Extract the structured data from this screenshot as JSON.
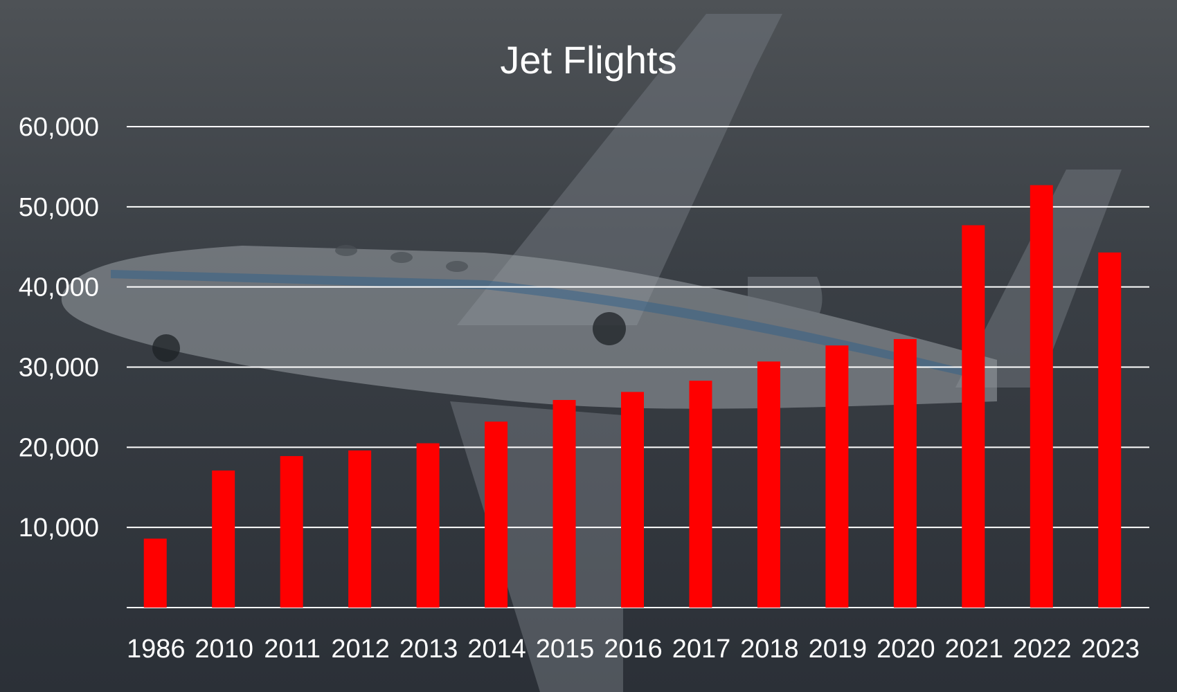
{
  "chart_data": {
    "type": "bar",
    "title": "Jet Flights",
    "xlabel": "",
    "ylabel": "",
    "categories": [
      "1986",
      "2010",
      "2011",
      "2012",
      "2013",
      "2014",
      "2015",
      "2016",
      "2017",
      "2018",
      "2019",
      "2020",
      "2021",
      "2022",
      "2023"
    ],
    "series": [
      {
        "values": [
          8600,
          17100,
          18900,
          19600,
          20500,
          23200,
          25900,
          26900,
          28300,
          30700,
          32700,
          33500,
          47700,
          52700,
          44300
        ]
      }
    ],
    "ylim": [
      0,
      60000
    ],
    "yticks": [
      10000,
      20000,
      30000,
      40000,
      50000,
      60000
    ],
    "ytick_labels": [
      "10,000",
      "20,000",
      "30,000",
      "40,000",
      "50,000",
      "60,000"
    ],
    "grid": true,
    "legend": "none",
    "bar_color": "#ff0000",
    "grid_color": "#ffffff",
    "text_color": "#ffffff"
  }
}
